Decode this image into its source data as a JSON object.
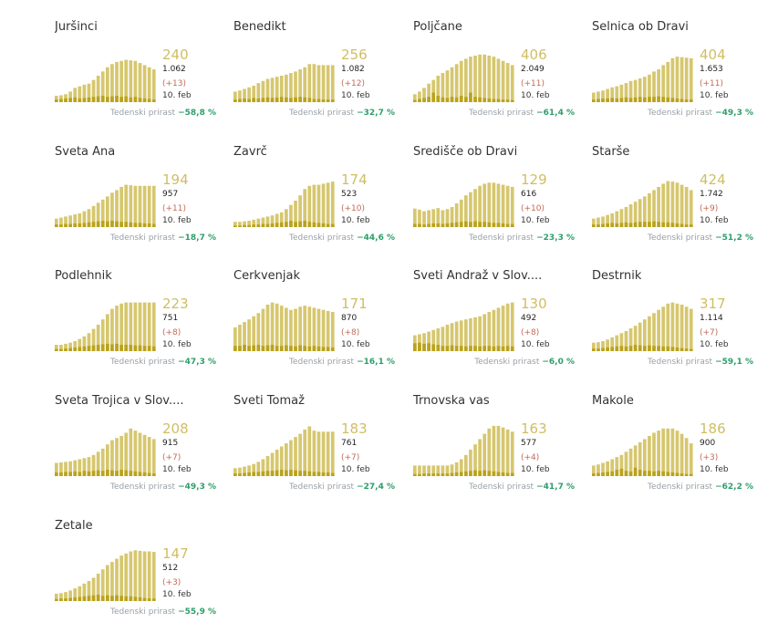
{
  "footer_label": "Tedenski prirast",
  "date_label": "10. feb",
  "colors": {
    "bar_total": "#d6c76f",
    "bar_new": "#b9a31c",
    "bar_last_week": "#d6c76f",
    "big_number": "#d0be63",
    "delta": "#c26b57",
    "growth": "#2e9e6a"
  },
  "chart_data": [
    {
      "type": "bar",
      "title": "Juršinci",
      "active": "240",
      "total": "1.062",
      "delta": "(+13)",
      "weekly_growth": "−58,8 %",
      "values": [
        0.12,
        0.13,
        0.15,
        0.2,
        0.27,
        0.3,
        0.33,
        0.35,
        0.42,
        0.5,
        0.58,
        0.66,
        0.72,
        0.76,
        0.78,
        0.8,
        0.79,
        0.78,
        0.74,
        0.7,
        0.66,
        0.62
      ],
      "new": [
        0.05,
        0.06,
        0.07,
        0.08,
        0.09,
        0.07,
        0.08,
        0.09,
        0.1,
        0.11,
        0.12,
        0.1,
        0.11,
        0.12,
        0.1,
        0.11,
        0.09,
        0.1,
        0.08,
        0.07,
        0.06,
        0.05
      ]
    },
    {
      "type": "bar",
      "title": "Benedikt",
      "active": "256",
      "total": "1.082",
      "delta": "(+12)",
      "weekly_growth": "−32,7 %",
      "values": [
        0.2,
        0.22,
        0.25,
        0.28,
        0.31,
        0.36,
        0.4,
        0.44,
        0.46,
        0.48,
        0.5,
        0.52,
        0.55,
        0.58,
        0.62,
        0.66,
        0.72,
        0.72,
        0.7,
        0.7,
        0.7,
        0.7
      ],
      "new": [
        0.05,
        0.06,
        0.07,
        0.06,
        0.08,
        0.07,
        0.08,
        0.09,
        0.08,
        0.09,
        0.1,
        0.09,
        0.08,
        0.09,
        0.1,
        0.09,
        0.08,
        0.06,
        0.06,
        0.05,
        0.05,
        0.05
      ]
    },
    {
      "type": "bar",
      "title": "Poljčane",
      "active": "406",
      "total": "2.049",
      "delta": "(+11)",
      "weekly_growth": "−61,4 %",
      "values": [
        0.15,
        0.2,
        0.27,
        0.35,
        0.42,
        0.5,
        0.55,
        0.6,
        0.66,
        0.72,
        0.78,
        0.82,
        0.86,
        0.88,
        0.9,
        0.9,
        0.88,
        0.86,
        0.82,
        0.78,
        0.74,
        0.7
      ],
      "new": [
        0.04,
        0.06,
        0.08,
        0.1,
        0.18,
        0.12,
        0.09,
        0.08,
        0.1,
        0.09,
        0.12,
        0.1,
        0.18,
        0.1,
        0.09,
        0.08,
        0.07,
        0.06,
        0.06,
        0.05,
        0.05,
        0.04
      ]
    },
    {
      "type": "bar",
      "title": "Selnica ob Dravi",
      "active": "404",
      "total": "1.653",
      "delta": "(+11)",
      "weekly_growth": "−49,3 %",
      "values": [
        0.18,
        0.2,
        0.22,
        0.25,
        0.28,
        0.3,
        0.33,
        0.36,
        0.4,
        0.42,
        0.45,
        0.48,
        0.52,
        0.58,
        0.62,
        0.7,
        0.76,
        0.83,
        0.86,
        0.85,
        0.84,
        0.83
      ],
      "new": [
        0.05,
        0.06,
        0.07,
        0.07,
        0.08,
        0.07,
        0.08,
        0.09,
        0.08,
        0.09,
        0.1,
        0.09,
        0.1,
        0.1,
        0.11,
        0.1,
        0.09,
        0.08,
        0.07,
        0.06,
        0.05,
        0.05
      ]
    },
    {
      "type": "bar",
      "title": "Sveta Ana",
      "active": "194",
      "total": "957",
      "delta": "(+11)",
      "weekly_growth": "−18,7 %",
      "values": [
        0.16,
        0.18,
        0.2,
        0.22,
        0.24,
        0.26,
        0.3,
        0.34,
        0.4,
        0.46,
        0.52,
        0.58,
        0.65,
        0.7,
        0.76,
        0.8,
        0.79,
        0.78,
        0.78,
        0.78,
        0.78,
        0.78
      ],
      "new": [
        0.05,
        0.05,
        0.06,
        0.06,
        0.07,
        0.07,
        0.08,
        0.09,
        0.1,
        0.11,
        0.12,
        0.11,
        0.12,
        0.11,
        0.1,
        0.1,
        0.09,
        0.08,
        0.08,
        0.07,
        0.07,
        0.06
      ]
    },
    {
      "type": "bar",
      "title": "Zavrč",
      "active": "174",
      "total": "523",
      "delta": "(+10)",
      "weekly_growth": "−44,6 %",
      "values": [
        0.1,
        0.1,
        0.11,
        0.12,
        0.14,
        0.16,
        0.18,
        0.2,
        0.22,
        0.25,
        0.28,
        0.34,
        0.42,
        0.5,
        0.6,
        0.72,
        0.78,
        0.8,
        0.8,
        0.82,
        0.84,
        0.86
      ],
      "new": [
        0.03,
        0.03,
        0.04,
        0.04,
        0.05,
        0.05,
        0.06,
        0.06,
        0.07,
        0.08,
        0.09,
        0.1,
        0.12,
        0.1,
        0.11,
        0.12,
        0.1,
        0.09,
        0.08,
        0.07,
        0.06,
        0.06
      ]
    },
    {
      "type": "bar",
      "title": "Središče ob Dravi",
      "active": "129",
      "total": "616",
      "delta": "(+10)",
      "weekly_growth": "−23,3 %",
      "values": [
        0.35,
        0.33,
        0.3,
        0.32,
        0.34,
        0.36,
        0.32,
        0.34,
        0.38,
        0.45,
        0.52,
        0.6,
        0.66,
        0.72,
        0.78,
        0.82,
        0.84,
        0.84,
        0.82,
        0.8,
        0.78,
        0.76
      ],
      "new": [
        0.06,
        0.06,
        0.05,
        0.06,
        0.07,
        0.07,
        0.06,
        0.07,
        0.08,
        0.09,
        0.1,
        0.11,
        0.1,
        0.11,
        0.1,
        0.1,
        0.09,
        0.08,
        0.08,
        0.07,
        0.06,
        0.06
      ]
    },
    {
      "type": "bar",
      "title": "Starše",
      "active": "424",
      "total": "1.742",
      "delta": "(+9)",
      "weekly_growth": "−51,2 %",
      "values": [
        0.16,
        0.18,
        0.2,
        0.23,
        0.26,
        0.3,
        0.34,
        0.38,
        0.43,
        0.48,
        0.53,
        0.58,
        0.64,
        0.7,
        0.76,
        0.82,
        0.87,
        0.86,
        0.84,
        0.8,
        0.76,
        0.7
      ],
      "new": [
        0.05,
        0.05,
        0.06,
        0.07,
        0.08,
        0.07,
        0.08,
        0.09,
        0.08,
        0.09,
        0.1,
        0.1,
        0.1,
        0.11,
        0.1,
        0.09,
        0.09,
        0.08,
        0.07,
        0.06,
        0.05,
        0.05
      ]
    },
    {
      "type": "bar",
      "title": "Podlehnik",
      "active": "223",
      "total": "751",
      "delta": "(+8)",
      "weekly_growth": "−47,3 %",
      "values": [
        0.12,
        0.12,
        0.14,
        0.16,
        0.19,
        0.23,
        0.28,
        0.34,
        0.42,
        0.5,
        0.6,
        0.7,
        0.8,
        0.86,
        0.9,
        0.92,
        0.92,
        0.92,
        0.92,
        0.92,
        0.92,
        0.92
      ],
      "new": [
        0.04,
        0.04,
        0.05,
        0.06,
        0.07,
        0.08,
        0.09,
        0.1,
        0.11,
        0.12,
        0.13,
        0.14,
        0.13,
        0.14,
        0.12,
        0.12,
        0.12,
        0.11,
        0.11,
        0.1,
        0.1,
        0.09
      ]
    },
    {
      "type": "bar",
      "title": "Cerkvenjak",
      "active": "171",
      "total": "870",
      "delta": "(+8)",
      "weekly_growth": "−16,1 %",
      "values": [
        0.45,
        0.5,
        0.55,
        0.6,
        0.66,
        0.72,
        0.8,
        0.88,
        0.92,
        0.9,
        0.86,
        0.82,
        0.78,
        0.8,
        0.84,
        0.86,
        0.84,
        0.82,
        0.8,
        0.78,
        0.76,
        0.74
      ],
      "new": [
        0.1,
        0.1,
        0.12,
        0.1,
        0.11,
        0.12,
        0.1,
        0.11,
        0.12,
        0.1,
        0.1,
        0.11,
        0.1,
        0.09,
        0.11,
        0.1,
        0.09,
        0.1,
        0.09,
        0.08,
        0.08,
        0.07
      ]
    },
    {
      "type": "bar",
      "title": "Sveti Andraž v Slov....",
      "active": "130",
      "total": "492",
      "delta": "(+8)",
      "weekly_growth": "−6,0 %",
      "values": [
        0.3,
        0.32,
        0.34,
        0.37,
        0.4,
        0.43,
        0.46,
        0.5,
        0.53,
        0.56,
        0.58,
        0.6,
        0.62,
        0.64,
        0.66,
        0.7,
        0.74,
        0.78,
        0.82,
        0.86,
        0.9,
        0.92
      ],
      "new": [
        0.15,
        0.16,
        0.14,
        0.15,
        0.13,
        0.12,
        0.1,
        0.1,
        0.11,
        0.1,
        0.1,
        0.09,
        0.1,
        0.1,
        0.09,
        0.1,
        0.1,
        0.09,
        0.1,
        0.09,
        0.1,
        0.09
      ]
    },
    {
      "type": "bar",
      "title": "Destrnik",
      "active": "317",
      "total": "1.114",
      "delta": "(+7)",
      "weekly_growth": "−59,1 %",
      "values": [
        0.16,
        0.17,
        0.19,
        0.22,
        0.26,
        0.3,
        0.34,
        0.38,
        0.43,
        0.48,
        0.54,
        0.6,
        0.66,
        0.72,
        0.78,
        0.84,
        0.9,
        0.92,
        0.9,
        0.88,
        0.84,
        0.8
      ],
      "new": [
        0.05,
        0.05,
        0.06,
        0.07,
        0.08,
        0.09,
        0.1,
        0.09,
        0.1,
        0.12,
        0.11,
        0.1,
        0.11,
        0.1,
        0.1,
        0.09,
        0.09,
        0.08,
        0.07,
        0.06,
        0.05,
        0.04
      ]
    },
    {
      "type": "bar",
      "title": "Sveta Trojica v Slov....",
      "active": "208",
      "total": "915",
      "delta": "(+7)",
      "weekly_growth": "−49,3 %",
      "values": [
        0.25,
        0.26,
        0.27,
        0.28,
        0.3,
        0.32,
        0.34,
        0.36,
        0.4,
        0.46,
        0.52,
        0.6,
        0.68,
        0.72,
        0.76,
        0.82,
        0.9,
        0.86,
        0.82,
        0.78,
        0.74,
        0.7
      ],
      "new": [
        0.07,
        0.07,
        0.08,
        0.08,
        0.09,
        0.08,
        0.1,
        0.09,
        0.1,
        0.11,
        0.1,
        0.12,
        0.11,
        0.1,
        0.12,
        0.11,
        0.1,
        0.09,
        0.08,
        0.07,
        0.06,
        0.05
      ]
    },
    {
      "type": "bar",
      "title": "Sveti Tomaž",
      "active": "183",
      "total": "761",
      "delta": "(+7)",
      "weekly_growth": "−27,4 %",
      "values": [
        0.15,
        0.16,
        0.18,
        0.2,
        0.23,
        0.27,
        0.32,
        0.38,
        0.44,
        0.5,
        0.56,
        0.62,
        0.68,
        0.74,
        0.8,
        0.88,
        0.94,
        0.86,
        0.84,
        0.84,
        0.84,
        0.84
      ],
      "new": [
        0.05,
        0.05,
        0.06,
        0.07,
        0.08,
        0.08,
        0.09,
        0.1,
        0.1,
        0.11,
        0.12,
        0.11,
        0.12,
        0.11,
        0.1,
        0.1,
        0.09,
        0.08,
        0.08,
        0.07,
        0.07,
        0.06
      ]
    },
    {
      "type": "bar",
      "title": "Trnovska vas",
      "active": "163",
      "total": "577",
      "delta": "(+4)",
      "weekly_growth": "−41,7 %",
      "values": [
        0.2,
        0.2,
        0.2,
        0.2,
        0.2,
        0.2,
        0.2,
        0.2,
        0.22,
        0.26,
        0.32,
        0.4,
        0.5,
        0.6,
        0.7,
        0.8,
        0.9,
        0.95,
        0.95,
        0.92,
        0.88,
        0.84
      ],
      "new": [
        0.04,
        0.04,
        0.05,
        0.05,
        0.05,
        0.05,
        0.05,
        0.05,
        0.06,
        0.07,
        0.08,
        0.09,
        0.1,
        0.11,
        0.1,
        0.11,
        0.1,
        0.09,
        0.08,
        0.07,
        0.06,
        0.06
      ]
    },
    {
      "type": "bar",
      "title": "Makole",
      "active": "186",
      "total": "900",
      "delta": "(+3)",
      "weekly_growth": "−62,2 %",
      "values": [
        0.2,
        0.22,
        0.25,
        0.28,
        0.32,
        0.36,
        0.4,
        0.46,
        0.52,
        0.58,
        0.64,
        0.7,
        0.76,
        0.82,
        0.86,
        0.9,
        0.9,
        0.9,
        0.86,
        0.8,
        0.72,
        0.62
      ],
      "new": [
        0.05,
        0.06,
        0.07,
        0.08,
        0.09,
        0.12,
        0.14,
        0.1,
        0.09,
        0.16,
        0.12,
        0.1,
        0.1,
        0.09,
        0.1,
        0.09,
        0.08,
        0.07,
        0.06,
        0.05,
        0.04,
        0.04
      ]
    },
    {
      "type": "bar",
      "title": "Žetale",
      "active": "147",
      "total": "512",
      "delta": "(+3)",
      "weekly_growth": "−55,9 %",
      "values": [
        0.14,
        0.15,
        0.17,
        0.2,
        0.24,
        0.28,
        0.33,
        0.38,
        0.44,
        0.52,
        0.6,
        0.68,
        0.74,
        0.8,
        0.86,
        0.9,
        0.94,
        0.96,
        0.95,
        0.94,
        0.94,
        0.93
      ],
      "new": [
        0.04,
        0.05,
        0.05,
        0.06,
        0.07,
        0.08,
        0.09,
        0.1,
        0.11,
        0.12,
        0.1,
        0.11,
        0.1,
        0.11,
        0.1,
        0.09,
        0.09,
        0.08,
        0.07,
        0.06,
        0.05,
        0.05
      ]
    }
  ]
}
